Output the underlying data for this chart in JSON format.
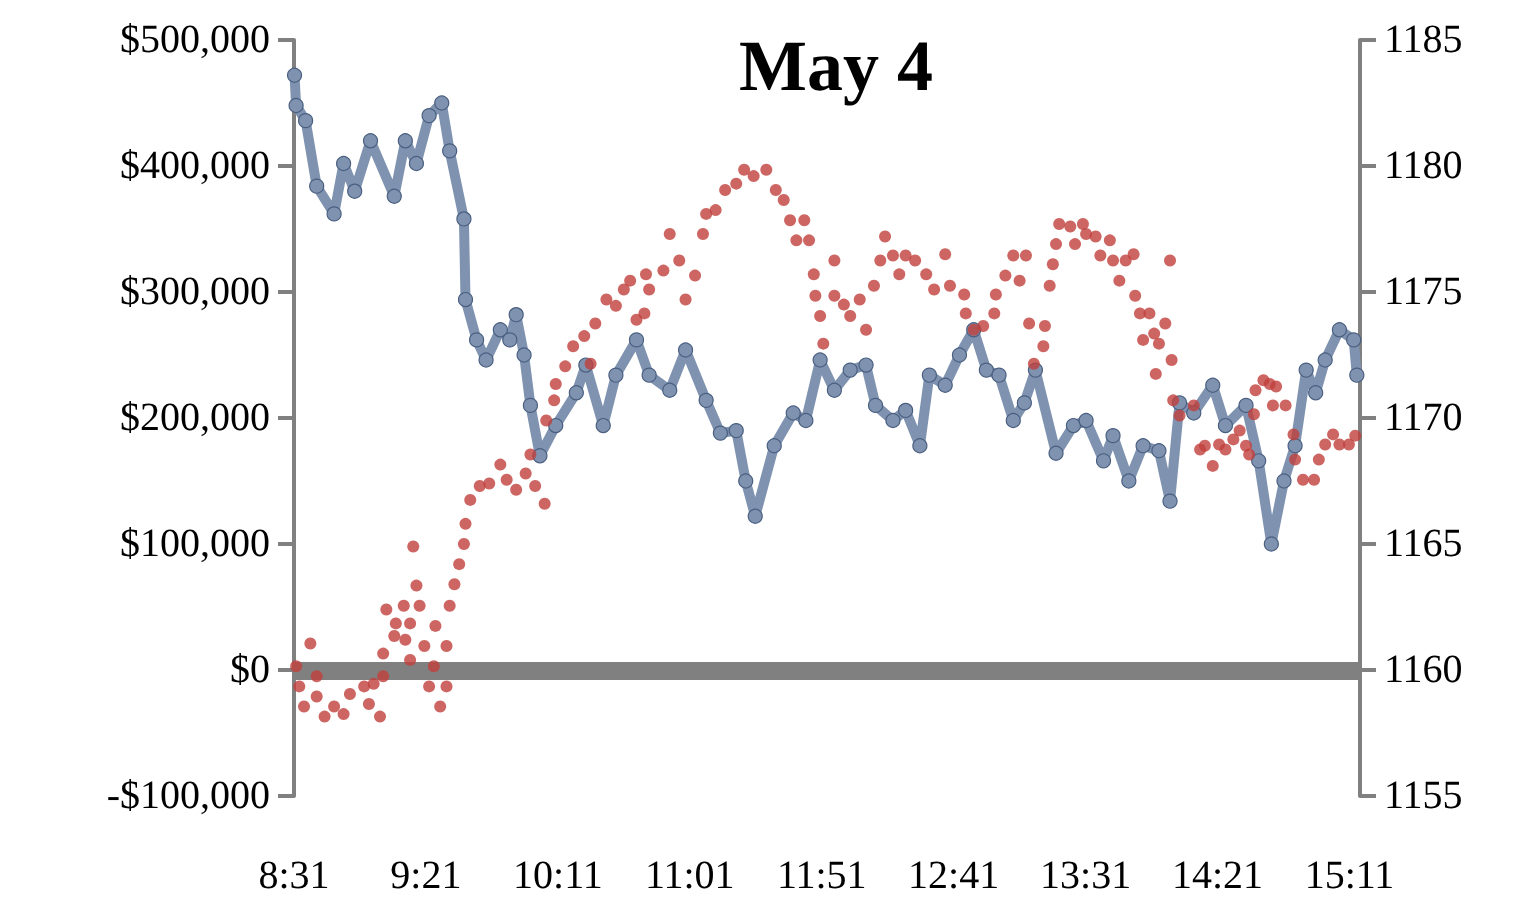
{
  "chart_data": {
    "type": "line",
    "title": "May 4",
    "xlim": [
      8.5167,
      15.25
    ],
    "xticks": [
      {
        "value": 8.5167,
        "label": "8:31"
      },
      {
        "value": 9.35,
        "label": "9:21"
      },
      {
        "value": 10.1833,
        "label": "10:11"
      },
      {
        "value": 11.0167,
        "label": "11:01"
      },
      {
        "value": 11.85,
        "label": "11:51"
      },
      {
        "value": 12.6833,
        "label": "12:41"
      },
      {
        "value": 13.5167,
        "label": "13:31"
      },
      {
        "value": 14.35,
        "label": "14:21"
      },
      {
        "value": 15.1833,
        "label": "15:11"
      }
    ],
    "ylim": [
      -100000,
      500000
    ],
    "yticks": [
      {
        "value": -100000,
        "label": "-$100,000"
      },
      {
        "value": 0,
        "label": "$0"
      },
      {
        "value": 100000,
        "label": "$100,000"
      },
      {
        "value": 200000,
        "label": "$200,000"
      },
      {
        "value": 300000,
        "label": "$300,000"
      },
      {
        "value": 400000,
        "label": "$400,000"
      },
      {
        "value": 500000,
        "label": "$500,000"
      }
    ],
    "y2lim": [
      1155,
      1185
    ],
    "y2ticks": [
      1155,
      1160,
      1165,
      1170,
      1175,
      1180,
      1185
    ],
    "grid": false,
    "ref_lines": [
      {
        "axis": "y",
        "value": 0,
        "color": "#808080"
      }
    ],
    "series": [
      {
        "axis": "y2",
        "color": "#7f93b0",
        "line_style": "solid",
        "marker": "circle",
        "x": [
          8.52,
          8.53,
          8.59,
          8.66,
          8.77,
          8.83,
          8.9,
          9.0,
          9.15,
          9.22,
          9.29,
          9.37,
          9.45,
          9.5,
          9.59,
          9.6,
          9.67,
          9.73,
          9.82,
          9.88,
          9.92,
          9.97,
          10.01,
          10.07,
          10.17,
          10.3,
          10.36,
          10.47,
          10.55,
          10.68,
          10.76,
          10.89,
          10.99,
          11.12,
          11.21,
          11.31,
          11.37,
          11.43,
          11.55,
          11.67,
          11.75,
          11.84,
          11.93,
          12.03,
          12.13,
          12.19,
          12.3,
          12.38,
          12.47,
          12.53,
          12.63,
          12.72,
          12.81,
          12.89,
          12.97,
          13.06,
          13.13,
          13.2,
          13.33,
          13.44,
          13.52,
          13.63,
          13.69,
          13.79,
          13.88,
          13.98,
          14.05,
          14.11,
          14.2,
          14.32,
          14.4,
          14.53,
          14.61,
          14.69,
          14.77,
          14.84,
          14.91,
          14.97,
          15.03,
          15.12,
          15.21,
          15.23
        ],
        "values": [
          1183.6,
          1182.4,
          1181.8,
          1179.2,
          1178.1,
          1180.1,
          1179.0,
          1181.0,
          1178.8,
          1181.0,
          1180.1,
          1182.0,
          1182.5,
          1180.6,
          1177.9,
          1174.7,
          1173.1,
          1172.3,
          1173.5,
          1173.1,
          1174.1,
          1172.5,
          1170.5,
          1168.5,
          1169.7,
          1171.0,
          1172.1,
          1169.7,
          1171.7,
          1173.1,
          1171.7,
          1171.1,
          1172.7,
          1170.7,
          1169.4,
          1169.5,
          1167.5,
          1166.1,
          1168.9,
          1170.2,
          1169.9,
          1172.3,
          1171.1,
          1171.9,
          1172.1,
          1170.5,
          1169.9,
          1170.3,
          1168.9,
          1171.7,
          1171.3,
          1172.5,
          1173.5,
          1171.9,
          1171.7,
          1169.9,
          1170.6,
          1171.9,
          1168.6,
          1169.7,
          1169.9,
          1168.3,
          1169.3,
          1167.5,
          1168.9,
          1168.7,
          1166.7,
          1170.6,
          1170.2,
          1171.3,
          1169.7,
          1170.5,
          1168.3,
          1165.0,
          1167.5,
          1168.9,
          1171.9,
          1171.0,
          1172.3,
          1173.5,
          1173.1,
          1171.7
        ]
      },
      {
        "type": "scatter",
        "color": "#c0403c",
        "marker": "circle",
        "x": [
          8.53,
          8.55,
          8.58,
          8.62,
          8.66,
          8.66,
          8.71,
          8.77,
          8.83,
          8.87,
          8.96,
          8.99,
          9.02,
          9.06,
          9.08,
          9.08,
          9.1,
          9.15,
          9.16,
          9.21,
          9.22,
          9.25,
          9.25,
          9.27,
          9.29,
          9.31,
          9.34,
          9.37,
          9.4,
          9.41,
          9.44,
          9.48,
          9.48,
          9.5,
          9.53,
          9.56,
          9.59,
          9.6,
          9.63,
          9.69,
          9.75,
          9.82,
          9.86,
          9.92,
          9.98,
          10.01,
          10.04,
          10.1,
          10.11,
          10.16,
          10.17,
          10.23,
          10.28,
          10.35,
          10.39,
          10.42,
          10.49,
          10.55,
          10.6,
          10.64,
          10.68,
          10.73,
          10.74,
          10.76,
          10.85,
          10.89,
          10.95,
          10.99,
          11.05,
          11.1,
          11.12,
          11.18,
          11.24,
          11.31,
          11.36,
          11.42,
          11.5,
          11.56,
          11.61,
          11.65,
          11.69,
          11.74,
          11.77,
          11.8,
          11.81,
          11.84,
          11.86,
          11.93,
          11.93,
          11.99,
          12.03,
          12.09,
          12.13,
          12.18,
          12.22,
          12.25,
          12.3,
          12.34,
          12.38,
          12.44,
          12.51,
          12.56,
          12.63,
          12.66,
          12.75,
          12.76,
          12.81,
          12.87,
          12.94,
          12.95,
          13.01,
          13.06,
          13.1,
          13.14,
          13.16,
          13.19,
          13.25,
          13.26,
          13.29,
          13.31,
          13.33,
          13.35,
          13.42,
          13.45,
          13.5,
          13.52,
          13.58,
          13.61,
          13.67,
          13.69,
          13.73,
          13.77,
          13.82,
          13.83,
          13.86,
          13.88,
          13.92,
          13.95,
          13.96,
          13.98,
          14.02,
          14.05,
          14.06,
          14.07,
          14.11,
          14.2,
          14.24,
          14.27,
          14.32,
          14.36,
          14.4,
          14.45,
          14.49,
          14.53,
          14.55,
          14.58,
          14.59,
          14.64,
          14.68,
          14.7,
          14.72,
          14.78,
          14.83,
          14.84,
          14.89,
          14.96,
          14.99,
          15.03,
          15.08,
          15.12,
          15.18,
          15.22
        ],
        "values": [
          3000,
          -13000,
          -29000,
          21000,
          -5000,
          -21000,
          -37000,
          -29000,
          -35000,
          -19000,
          -13000,
          -27000,
          -11000,
          -37000,
          -5000,
          13000,
          48000,
          27000,
          37000,
          51000,
          24000,
          37000,
          8000,
          98000,
          67000,
          51000,
          19000,
          -13000,
          3000,
          35000,
          -29000,
          19000,
          -13000,
          51000,
          68000,
          84000,
          100000,
          116000,
          135000,
          146000,
          148000,
          163000,
          151000,
          143000,
          156000,
          171000,
          146000,
          132000,
          198000,
          214000,
          227000,
          241000,
          257000,
          265000,
          243000,
          275000,
          294000,
          289000,
          302000,
          309000,
          278000,
          283000,
          314000,
          302000,
          317000,
          346000,
          325000,
          294000,
          313000,
          346000,
          362000,
          365000,
          381000,
          386000,
          397000,
          392000,
          397000,
          381000,
          373000,
          357000,
          341000,
          357000,
          341000,
          314000,
          297000,
          281000,
          259000,
          325000,
          297000,
          290000,
          281000,
          294000,
          270000,
          305000,
          325000,
          344000,
          329000,
          314000,
          329000,
          325000,
          314000,
          302000,
          330000,
          305000,
          298000,
          283000,
          270000,
          273000,
          283000,
          298000,
          313000,
          329000,
          309000,
          329000,
          275000,
          243000,
          257000,
          273000,
          305000,
          322000,
          338000,
          354000,
          352000,
          338000,
          354000,
          346000,
          344000,
          329000,
          341000,
          325000,
          309000,
          325000,
          330000,
          297000,
          283000,
          262000,
          283000,
          267000,
          235000,
          259000,
          275000,
          325000,
          246000,
          214000,
          202000,
          210000,
          175000,
          178000,
          162000,
          179000,
          175000,
          183000,
          190000,
          178000,
          171000,
          203000,
          222000,
          230000,
          227000,
          210000,
          225000,
          210000,
          187000,
          167000,
          151000,
          151000,
          167000,
          179000,
          187000,
          179000,
          179000,
          186000
        ]
      }
    ]
  }
}
